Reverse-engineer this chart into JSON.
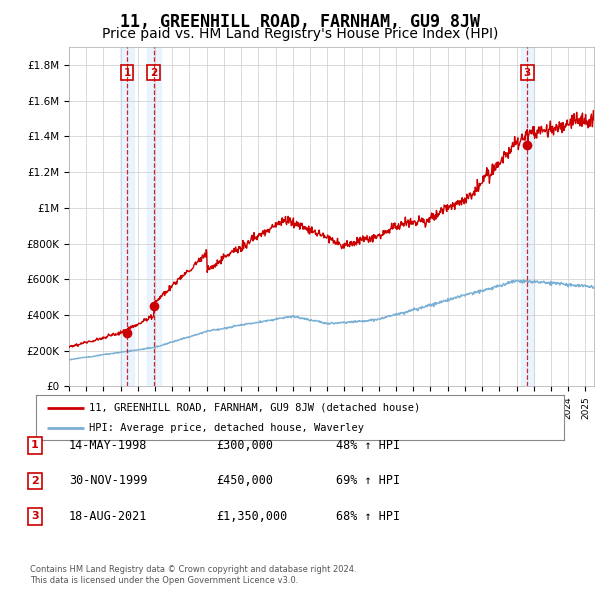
{
  "title": "11, GREENHILL ROAD, FARNHAM, GU9 8JW",
  "subtitle": "Price paid vs. HM Land Registry's House Price Index (HPI)",
  "ylabel_ticks": [
    "£0",
    "£200K",
    "£400K",
    "£600K",
    "£800K",
    "£1M",
    "£1.2M",
    "£1.4M",
    "£1.6M",
    "£1.8M"
  ],
  "ytick_values": [
    0,
    200000,
    400000,
    600000,
    800000,
    1000000,
    1200000,
    1400000,
    1600000,
    1800000
  ],
  "ylim": [
    0,
    1900000
  ],
  "xlim_start": 1995.0,
  "xlim_end": 2025.5,
  "sale_dates": [
    1998.37,
    1999.92,
    2021.63
  ],
  "sale_prices": [
    300000,
    450000,
    1350000
  ],
  "sale_labels": [
    "1",
    "2",
    "3"
  ],
  "line_red": "#cc0000",
  "line_blue": "#7ab0d4",
  "shade_sale": "#ddeeff",
  "legend_red_label": "11, GREENHILL ROAD, FARNHAM, GU9 8JW (detached house)",
  "legend_blue_label": "HPI: Average price, detached house, Waverley",
  "table_data": [
    [
      "1",
      "14-MAY-1998",
      "£300,000",
      "48% ↑ HPI"
    ],
    [
      "2",
      "30-NOV-1999",
      "£450,000",
      "69% ↑ HPI"
    ],
    [
      "3",
      "18-AUG-2021",
      "£1,350,000",
      "68% ↑ HPI"
    ]
  ],
  "footnote1": "Contains HM Land Registry data © Crown copyright and database right 2024.",
  "footnote2": "This data is licensed under the Open Government Licence v3.0.",
  "background_color": "#ffffff",
  "grid_color": "#cccccc",
  "title_fontsize": 12,
  "subtitle_fontsize": 10
}
